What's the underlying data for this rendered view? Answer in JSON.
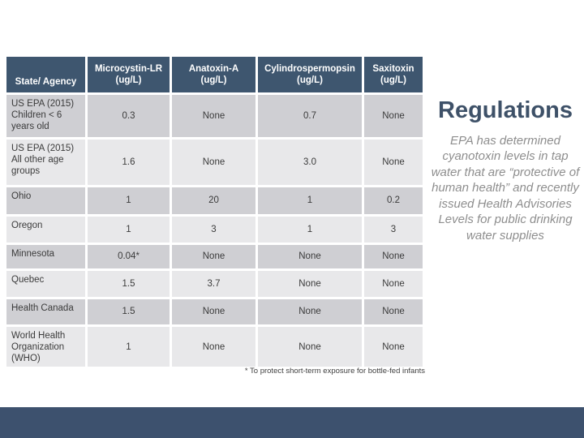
{
  "slide": {
    "title": "Regulations",
    "body_text": "EPA has determined cyanotoxin levels in tap water that are “protective of human health” and recently issued Health Advisories Levels for public drinking water supplies",
    "footnote": "* To protect short-term exposure for bottle-fed infants"
  },
  "colors": {
    "table_header_bg": "#3e566f",
    "row_band_dark": "#cfcfd3",
    "row_band_light": "#e8e8ea",
    "title_accent": "#3e5168",
    "body_text_gray": "#8e8e8e",
    "footer_bar_bg": "#3d516e"
  },
  "table": {
    "columns": [
      {
        "title": "State/ Agency",
        "subtitle": ""
      },
      {
        "title": "Microcystin-LR",
        "subtitle": "(ug/L)"
      },
      {
        "title": "Anatoxin-A",
        "subtitle": "(ug/L)"
      },
      {
        "title": "Cylindrospermopsin",
        "subtitle": "(ug/L)"
      },
      {
        "title": "Saxitoxin",
        "subtitle": "(ug/L)"
      }
    ],
    "rows": [
      {
        "agency": "US EPA (2015) Children < 6 years old",
        "values": [
          "0.3",
          "None",
          "0.7",
          "None"
        ]
      },
      {
        "agency": "US EPA (2015) All other age groups",
        "values": [
          "1.6",
          "None",
          "3.0",
          "None"
        ]
      },
      {
        "agency": "Ohio",
        "values": [
          "1",
          "20",
          "1",
          "0.2"
        ]
      },
      {
        "agency": "Oregon",
        "values": [
          "1",
          "3",
          "1",
          "3"
        ]
      },
      {
        "agency": "Minnesota",
        "values": [
          "0.04*",
          "None",
          "None",
          "None"
        ]
      },
      {
        "agency": "Quebec",
        "values": [
          "1.5",
          "3.7",
          "None",
          "None"
        ]
      },
      {
        "agency": "Health Canada",
        "values": [
          "1.5",
          "None",
          "None",
          "None"
        ]
      },
      {
        "agency": "World Health Organization (WHO)",
        "values": [
          "1",
          "None",
          "None",
          "None"
        ]
      }
    ]
  }
}
